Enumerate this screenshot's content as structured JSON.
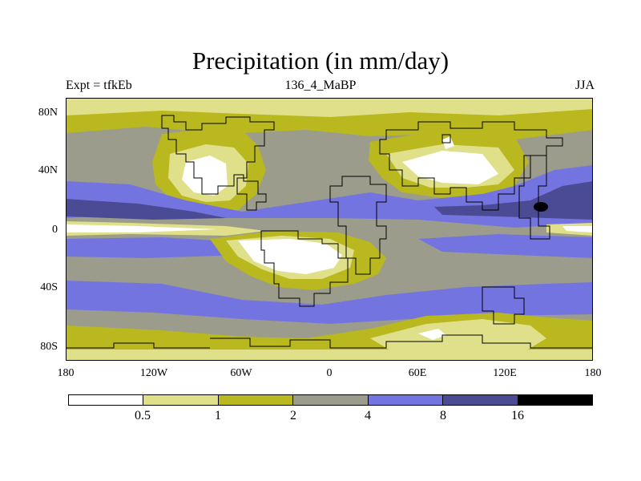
{
  "title": "Precipitation (in mm/day)",
  "subtitle_left": "Expt = tfkEb",
  "subtitle_center": "136_4_MaBP",
  "subtitle_right": "JJA",
  "y_ticks": [
    "80N",
    "40N",
    "0",
    "40S",
    "80S"
  ],
  "x_ticks": [
    "180",
    "120W",
    "60W",
    "0",
    "60E",
    "120E",
    "180"
  ],
  "colorbar": {
    "colors": [
      "#ffffff",
      "#e1e08a",
      "#b9b81f",
      "#9c9c8d",
      "#7474e0",
      "#4a4a95",
      "#000000"
    ],
    "labels": [
      "0.5",
      "1",
      "2",
      "4",
      "8",
      "16"
    ]
  },
  "map": {
    "projection": "cylindrical equidistant",
    "lon_range": [
      -180,
      180
    ],
    "lat_range": [
      -90,
      90
    ],
    "grid": false
  }
}
